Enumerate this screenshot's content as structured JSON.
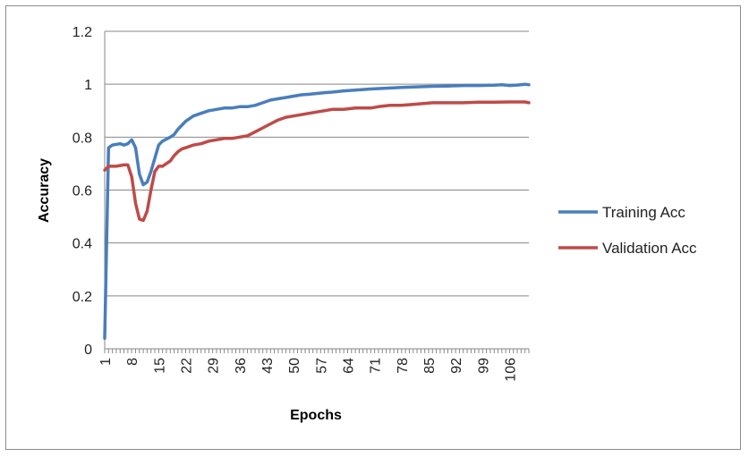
{
  "chart_data": {
    "type": "line",
    "title": "",
    "xlabel": "Epochs",
    "ylabel": "Accuracy",
    "ylim": [
      0,
      1.2
    ],
    "yticks": [
      "0",
      "0.2",
      "0.4",
      "0.6",
      "0.8",
      "1",
      "1.2"
    ],
    "xticks": [
      "1",
      "8",
      "15",
      "22",
      "29",
      "36",
      "43",
      "50",
      "57",
      "64",
      "71",
      "78",
      "85",
      "92",
      "99",
      "106"
    ],
    "xlim": [
      1,
      111
    ],
    "grid": "horizontal",
    "legend_position": "right",
    "series": [
      {
        "name": "Training Acc",
        "color": "#4a7ebb",
        "points": [
          [
            1,
            0.04
          ],
          [
            2,
            0.76
          ],
          [
            3,
            0.77
          ],
          [
            5,
            0.775
          ],
          [
            6,
            0.77
          ],
          [
            7,
            0.775
          ],
          [
            8,
            0.79
          ],
          [
            9,
            0.76
          ],
          [
            10,
            0.66
          ],
          [
            11,
            0.62
          ],
          [
            12,
            0.63
          ],
          [
            13,
            0.67
          ],
          [
            14,
            0.72
          ],
          [
            15,
            0.77
          ],
          [
            16,
            0.785
          ],
          [
            18,
            0.8
          ],
          [
            19,
            0.81
          ],
          [
            20,
            0.83
          ],
          [
            22,
            0.86
          ],
          [
            24,
            0.88
          ],
          [
            26,
            0.89
          ],
          [
            28,
            0.9
          ],
          [
            30,
            0.905
          ],
          [
            32,
            0.91
          ],
          [
            34,
            0.91
          ],
          [
            36,
            0.915
          ],
          [
            38,
            0.915
          ],
          [
            40,
            0.92
          ],
          [
            42,
            0.93
          ],
          [
            44,
            0.94
          ],
          [
            46,
            0.945
          ],
          [
            48,
            0.95
          ],
          [
            50,
            0.955
          ],
          [
            52,
            0.96
          ],
          [
            54,
            0.962
          ],
          [
            56,
            0.965
          ],
          [
            58,
            0.968
          ],
          [
            60,
            0.97
          ],
          [
            63,
            0.975
          ],
          [
            66,
            0.978
          ],
          [
            70,
            0.982
          ],
          [
            74,
            0.985
          ],
          [
            78,
            0.988
          ],
          [
            82,
            0.99
          ],
          [
            86,
            0.992
          ],
          [
            90,
            0.993
          ],
          [
            94,
            0.995
          ],
          [
            98,
            0.995
          ],
          [
            102,
            0.996
          ],
          [
            104,
            0.998
          ],
          [
            106,
            0.995
          ],
          [
            108,
            0.997
          ],
          [
            110,
            1.0
          ],
          [
            111,
            0.998
          ]
        ]
      },
      {
        "name": "Validation Acc",
        "color": "#be4b48",
        "points": [
          [
            1,
            0.675
          ],
          [
            2,
            0.69
          ],
          [
            4,
            0.69
          ],
          [
            6,
            0.695
          ],
          [
            7,
            0.695
          ],
          [
            8,
            0.65
          ],
          [
            9,
            0.55
          ],
          [
            10,
            0.49
          ],
          [
            11,
            0.485
          ],
          [
            12,
            0.52
          ],
          [
            13,
            0.6
          ],
          [
            14,
            0.67
          ],
          [
            15,
            0.69
          ],
          [
            16,
            0.69
          ],
          [
            17,
            0.7
          ],
          [
            18,
            0.71
          ],
          [
            19,
            0.73
          ],
          [
            20,
            0.745
          ],
          [
            21,
            0.755
          ],
          [
            22,
            0.76
          ],
          [
            24,
            0.77
          ],
          [
            26,
            0.775
          ],
          [
            28,
            0.785
          ],
          [
            30,
            0.79
          ],
          [
            32,
            0.795
          ],
          [
            34,
            0.795
          ],
          [
            36,
            0.8
          ],
          [
            38,
            0.805
          ],
          [
            40,
            0.82
          ],
          [
            42,
            0.835
          ],
          [
            44,
            0.85
          ],
          [
            46,
            0.865
          ],
          [
            48,
            0.875
          ],
          [
            50,
            0.88
          ],
          [
            52,
            0.885
          ],
          [
            54,
            0.89
          ],
          [
            56,
            0.895
          ],
          [
            58,
            0.9
          ],
          [
            60,
            0.905
          ],
          [
            63,
            0.905
          ],
          [
            66,
            0.91
          ],
          [
            68,
            0.91
          ],
          [
            70,
            0.91
          ],
          [
            72,
            0.915
          ],
          [
            75,
            0.92
          ],
          [
            78,
            0.92
          ],
          [
            82,
            0.925
          ],
          [
            86,
            0.93
          ],
          [
            90,
            0.93
          ],
          [
            94,
            0.93
          ],
          [
            98,
            0.932
          ],
          [
            102,
            0.932
          ],
          [
            106,
            0.933
          ],
          [
            110,
            0.933
          ],
          [
            111,
            0.93
          ]
        ]
      }
    ]
  }
}
